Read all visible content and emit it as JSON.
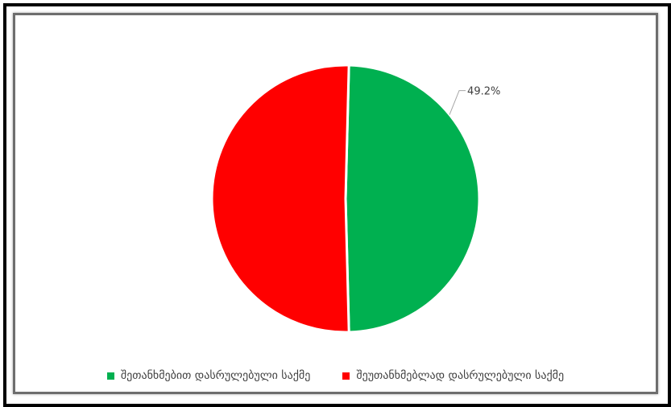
{
  "chart_data": {
    "type": "pie",
    "title": "",
    "categories": [
      "შეთანხმებით დასრულებული საქმე",
      "შეუთანხმებლად დასრულებული საქმე"
    ],
    "values": [
      49.2,
      50.8
    ],
    "colors": [
      "#00b050",
      "#ff0000"
    ],
    "data_labels": [
      "49.2%",
      ""
    ],
    "legend_position": "bottom",
    "start_angle": "top",
    "direction": "clockwise"
  }
}
